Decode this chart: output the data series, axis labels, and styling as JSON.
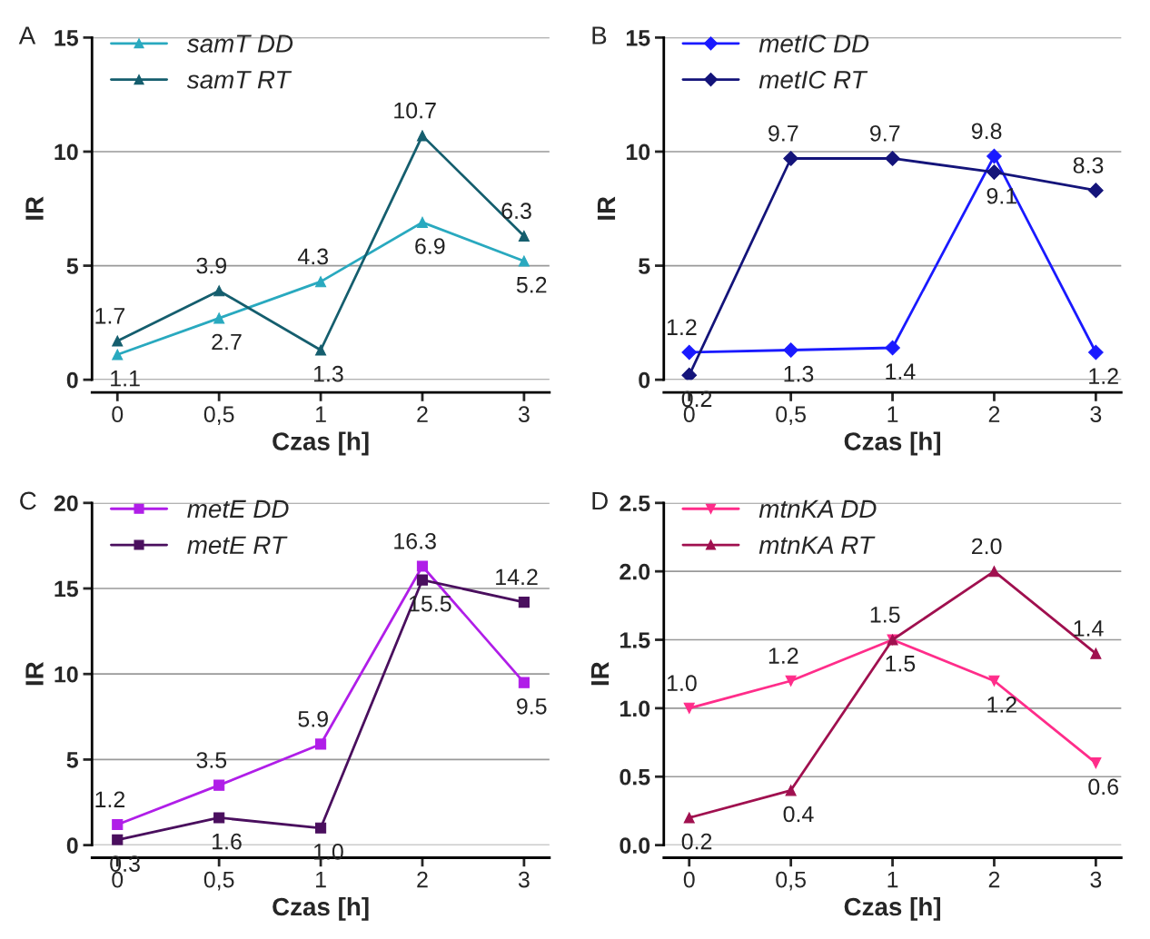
{
  "chart_data": [
    {
      "type": "line",
      "title": "A",
      "xlabel": "Czas [h]",
      "ylabel": "IR",
      "categories": [
        "0",
        "0,5",
        "1",
        "2",
        "3"
      ],
      "ylim": [
        0,
        15
      ],
      "yticks": [
        0,
        5,
        10,
        15
      ],
      "grid": "y",
      "legend": "top left",
      "series": [
        {
          "name": "samT DD",
          "color": "#29a9bf",
          "marker": "triangle",
          "values": [
            1.1,
            2.7,
            4.3,
            6.9,
            5.2
          ],
          "value_labels": [
            "1.1",
            "2.7",
            "4.3",
            "6.9",
            "5.2"
          ]
        },
        {
          "name": "samT RT",
          "color": "#155e6e",
          "marker": "triangle",
          "values": [
            1.7,
            3.9,
            1.3,
            10.7,
            6.3
          ],
          "value_labels": [
            "1.7",
            "3.9",
            "1.3",
            "10.7",
            "6.3"
          ]
        }
      ]
    },
    {
      "type": "line",
      "title": "B",
      "xlabel": "Czas [h]",
      "ylabel": "IR",
      "categories": [
        "0",
        "0,5",
        "1",
        "2",
        "3"
      ],
      "ylim": [
        0,
        15
      ],
      "yticks": [
        0,
        5,
        10,
        15
      ],
      "grid": "y",
      "legend": "top left",
      "series": [
        {
          "name": "metIC DD",
          "color": "#1a1aff",
          "marker": "diamond",
          "values": [
            1.2,
            1.3,
            1.4,
            9.8,
            1.2
          ],
          "value_labels": [
            "1.2",
            "1.3",
            "1.4",
            "9.8",
            "1.2"
          ]
        },
        {
          "name": "metIC RT",
          "color": "#14147a",
          "marker": "diamond",
          "values": [
            0.2,
            9.7,
            9.7,
            9.1,
            8.3
          ],
          "value_labels": [
            "0.2",
            "9.7",
            "9.7",
            "9.1",
            "8.3"
          ]
        }
      ]
    },
    {
      "type": "line",
      "title": "C",
      "xlabel": "Czas [h]",
      "ylabel": "IR",
      "categories": [
        "0",
        "0,5",
        "1",
        "2",
        "3"
      ],
      "ylim": [
        0,
        20
      ],
      "yticks": [
        0,
        5,
        10,
        15,
        20
      ],
      "grid": "y",
      "legend": "top left",
      "series": [
        {
          "name": "metE DD",
          "color": "#b01ee8",
          "marker": "square",
          "values": [
            1.2,
            3.5,
            5.9,
            16.3,
            9.5
          ],
          "value_labels": [
            "1.2",
            "3.5",
            "5.9",
            "16.3",
            "9.5"
          ]
        },
        {
          "name": "metE RT",
          "color": "#4a0f5e",
          "marker": "square",
          "values": [
            0.3,
            1.6,
            1.0,
            15.5,
            14.2
          ],
          "value_labels": [
            "0.3",
            "1.6",
            "1.0",
            "15.5",
            "14.2"
          ]
        }
      ]
    },
    {
      "type": "line",
      "title": "D",
      "xlabel": "Czas [h]",
      "ylabel": "IR",
      "categories": [
        "0",
        "0,5",
        "1",
        "2",
        "3"
      ],
      "ylim": [
        0,
        2.5
      ],
      "yticks": [
        {
          "value": 0,
          "label": "0.0"
        },
        {
          "value": 0.5,
          "label": "0.5"
        },
        {
          "value": 1,
          "label": "1.0"
        },
        {
          "value": 1.5,
          "label": "1.5"
        },
        {
          "value": 2,
          "label": "2.0"
        },
        {
          "value": 2.5,
          "label": "2.5"
        }
      ],
      "grid": "y",
      "legend": "top left",
      "series": [
        {
          "name": "mtnKA DD",
          "color": "#ff2d8a",
          "marker": "triangle_down",
          "values": [
            1.0,
            1.2,
            1.5,
            1.2,
            0.6
          ],
          "value_labels": [
            "1.0",
            "1.2",
            "1.5",
            "1.2",
            "0.6"
          ]
        },
        {
          "name": "mtnKA RT",
          "color": "#a0104f",
          "marker": "triangle",
          "values": [
            0.2,
            0.4,
            1.5,
            2.0,
            1.4
          ],
          "value_labels": [
            "0.2",
            "0.4",
            "1.5",
            "2.0",
            "1.4"
          ]
        }
      ]
    }
  ]
}
